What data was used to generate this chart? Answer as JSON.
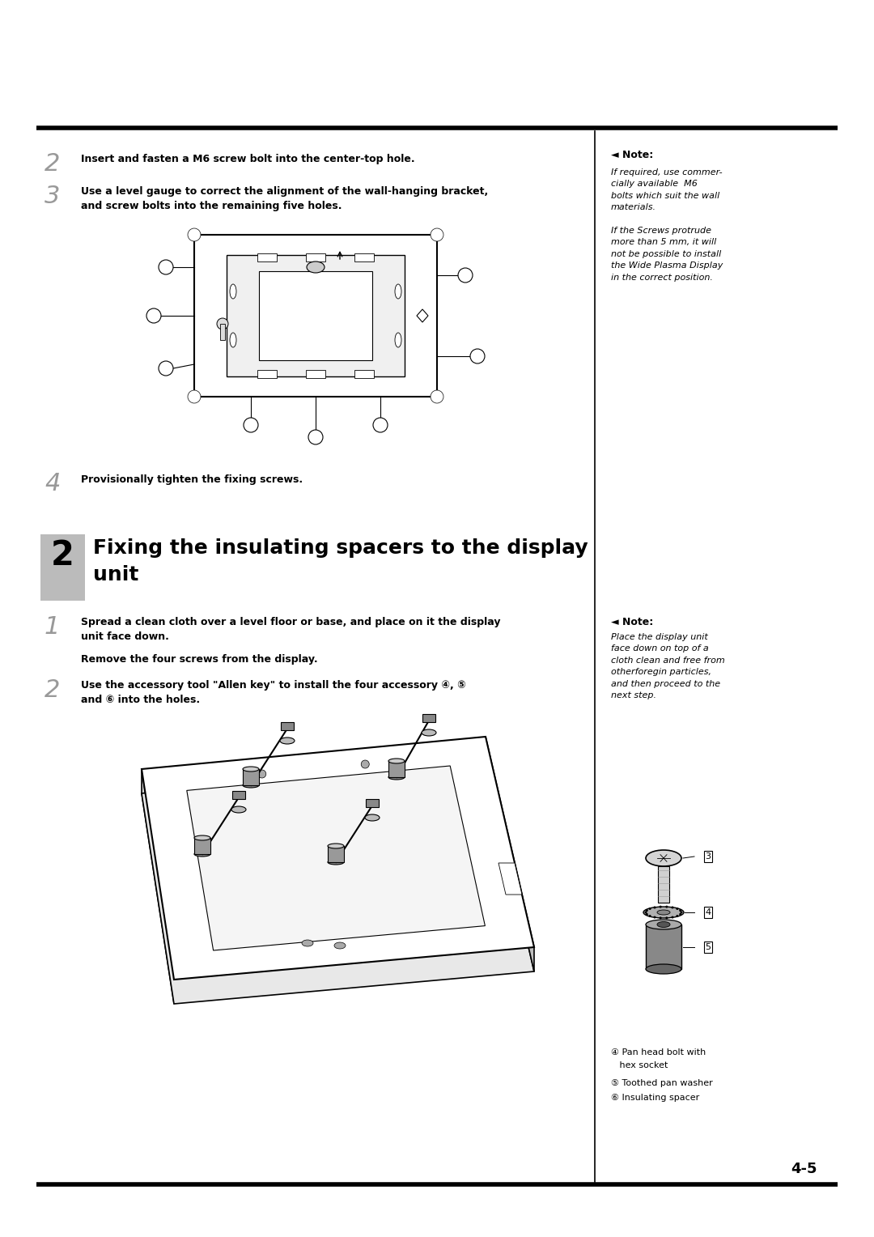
{
  "bg_color": "#ffffff",
  "page_width": 10.8,
  "page_height": 15.28,
  "step2_text": "Insert and fasten a M6 screw bolt into the center-top hole.",
  "step3_text_line1": "Use a level gauge to correct the alignment of the wall-hanging bracket,",
  "step3_text_line2": "and screw bolts into the remaining five holes.",
  "step4_text": "Provisionally tighten the fixing screws.",
  "note1_title": "◄ Note:",
  "note1_body": "If required, use commer-\ncially available  M6\nbolts which suit the wall\nmaterials.\n\nIf the Screws protrude\nmore than 5 mm, it will\nnot be possible to install\nthe Wide Plasma Display\nin the correct position.",
  "section2_num": "2",
  "section2_title_line1": "Fixing the insulating spacers to the display",
  "section2_title_line2": "unit",
  "sec2_step1_text_line1": "Spread a clean cloth over a level floor or base, and place on it the display",
  "sec2_step1_text_line2": "unit face down.",
  "sec2_step1b_text": "Remove the four screws from the display.",
  "sec2_step2_text_line1": "Use the accessory tool \"Allen key\" to install the four accessory ④, ⑤",
  "sec2_step2_text_line2": "and ⑥ into the holes.",
  "note2_title": "◄ Note:",
  "note2_body": "Place the display unit\nface down on top of a\ncloth clean and free from\notherforegin particles,\nand then proceed to the\nnext step.",
  "cap3_line1": "④ Pan head bolt with",
  "cap3_line2": "   hex socket",
  "cap4": "⑤ Toothed pan washer",
  "cap5": "⑥ Insulating spacer",
  "page_number": "4-5"
}
